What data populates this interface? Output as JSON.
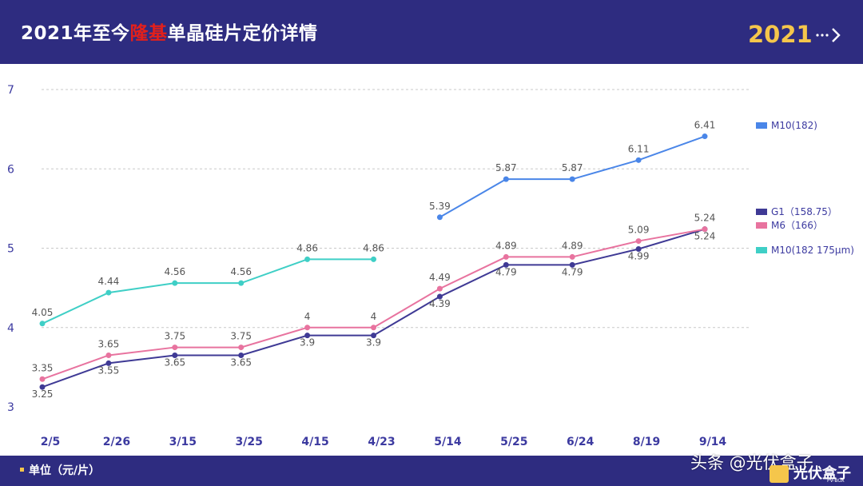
{
  "header": {
    "title_pre": "2021年至今",
    "title_highlight": "隆基",
    "title_post": "单晶硅片定价详情",
    "year": "2021",
    "bg_color": "#2e2c80",
    "highlight_color": "#e3201b",
    "year_color": "#f5c64b"
  },
  "footer": {
    "unit_label": "单位（元/片）",
    "watermark": "头条 @光伏盒子",
    "logo_text": "光伏盒子",
    "logo_sub": "PV-BOX"
  },
  "chart_data": {
    "type": "line",
    "title": "2021年至今隆基单晶硅片定价详情",
    "xlabel": "",
    "ylabel": "单位（元/片）",
    "ylim": [
      3,
      7
    ],
    "yticks": [
      3,
      4,
      5,
      6,
      7
    ],
    "grid": true,
    "legend": "right",
    "categories": [
      "2/5",
      "2/26",
      "3/15",
      "3/25",
      "4/15",
      "4/23",
      "5/14",
      "5/25",
      "6/24",
      "8/19",
      "9/14"
    ],
    "series": [
      {
        "name": "M10(182)",
        "color": "#4a86e8",
        "values": [
          null,
          null,
          null,
          null,
          null,
          null,
          5.39,
          5.87,
          5.87,
          6.11,
          6.41
        ],
        "labels": [
          "",
          "",
          "",
          "",
          "",
          "",
          "5.39",
          "5.87",
          "5.87",
          "6.11",
          "6.41"
        ]
      },
      {
        "name": "G1（158.75）",
        "color": "#3f3a95",
        "values": [
          3.25,
          3.55,
          3.65,
          3.65,
          3.9,
          3.9,
          4.39,
          4.79,
          4.79,
          4.99,
          5.24
        ],
        "labels": [
          "3.25",
          "3.55",
          "3.65",
          "3.65",
          "3.9",
          "3.9",
          "4.39",
          "4.79",
          "4.79",
          "4.99",
          "5.24"
        ]
      },
      {
        "name": "M6（166）",
        "color": "#e8739f",
        "values": [
          3.35,
          3.65,
          3.75,
          3.75,
          4.0,
          4.0,
          4.49,
          4.89,
          4.89,
          5.09,
          5.24
        ],
        "labels": [
          "3.35",
          "3.65",
          "3.75",
          "3.75",
          "4",
          "4",
          "4.49",
          "4.89",
          "4.89",
          "5.09",
          "5.24"
        ]
      },
      {
        "name": "M10(182 175μm)",
        "color": "#3fcfc6",
        "values": [
          4.05,
          4.44,
          4.56,
          4.56,
          4.86,
          4.86,
          null,
          null,
          null,
          null,
          null
        ],
        "labels": [
          "4.05",
          "4.44",
          "4.56",
          "4.56",
          "4.86",
          "4.86",
          "",
          "",
          "",
          "",
          ""
        ]
      }
    ]
  }
}
